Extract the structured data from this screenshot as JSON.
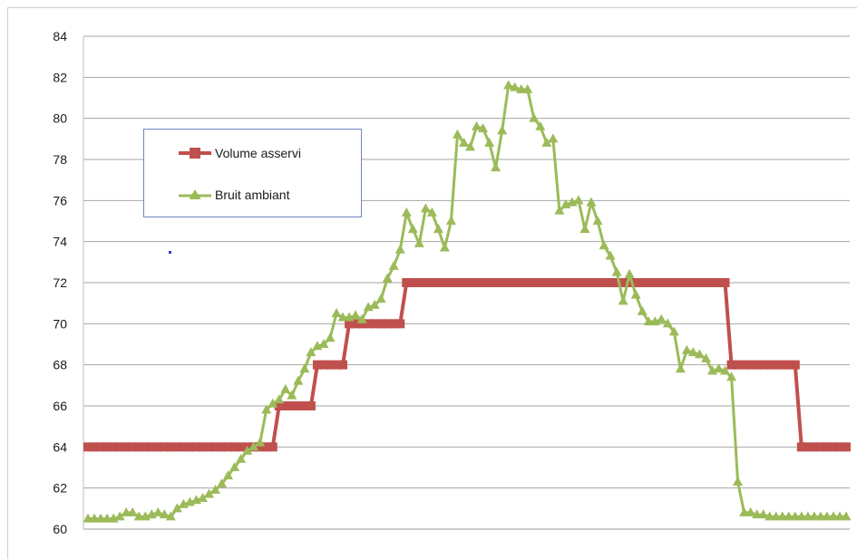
{
  "chart_data": {
    "type": "line",
    "title": "",
    "xlabel": "",
    "ylabel": "",
    "ylim": [
      60,
      84
    ],
    "yticks": [
      60,
      62,
      64,
      66,
      68,
      70,
      72,
      74,
      76,
      78,
      80,
      82,
      84
    ],
    "grid": "horizontal",
    "legend_position": "upper-left",
    "x": [
      1,
      2,
      3,
      4,
      5,
      6,
      7,
      8,
      9,
      10,
      11,
      12,
      13,
      14,
      15,
      16,
      17,
      18,
      19,
      20,
      21,
      22,
      23,
      24,
      25,
      26,
      27,
      28,
      29,
      30,
      31,
      32,
      33,
      34,
      35,
      36,
      37,
      38,
      39,
      40,
      41,
      42,
      43,
      44,
      45,
      46,
      47,
      48,
      49,
      50,
      51,
      52,
      53,
      54,
      55,
      56,
      57,
      58,
      59,
      60,
      61,
      62,
      63,
      64,
      65,
      66,
      67,
      68,
      69,
      70,
      71,
      72,
      73,
      74,
      75,
      76,
      77,
      78,
      79,
      80,
      81,
      82,
      83,
      84,
      85,
      86,
      87,
      88,
      89,
      90,
      91,
      92,
      93,
      94,
      95,
      96,
      97,
      98,
      99,
      100,
      101,
      102,
      103,
      104,
      105,
      106,
      107,
      108,
      109,
      110,
      111,
      112,
      113,
      114,
      115,
      116,
      117,
      118,
      119,
      120
    ],
    "series": [
      {
        "name": "Volume asservi",
        "color": "#c0504d",
        "marker": "square",
        "values": [
          64,
          64,
          64,
          64,
          64,
          64,
          64,
          64,
          64,
          64,
          64,
          64,
          64,
          64,
          64,
          64,
          64,
          64,
          64,
          64,
          64,
          64,
          64,
          64,
          64,
          64,
          64,
          64,
          64,
          64,
          66,
          66,
          66,
          66,
          66,
          66,
          68,
          68,
          68,
          68,
          68,
          70,
          70,
          70,
          70,
          70,
          70,
          70,
          70,
          70,
          72,
          72,
          72,
          72,
          72,
          72,
          72,
          72,
          72,
          72,
          72,
          72,
          72,
          72,
          72,
          72,
          72,
          72,
          72,
          72,
          72,
          72,
          72,
          72,
          72,
          72,
          72,
          72,
          72,
          72,
          72,
          72,
          72,
          72,
          72,
          72,
          72,
          72,
          72,
          72,
          72,
          72,
          72,
          72,
          72,
          72,
          72,
          72,
          72,
          72,
          72,
          68,
          68,
          68,
          68,
          68,
          68,
          68,
          68,
          68,
          68,
          68,
          64,
          64,
          64,
          64,
          64,
          64,
          64,
          64
        ],
        "values_count_note": ""
      },
      {
        "name": "Bruit ambiant",
        "color": "#9bbb59",
        "marker": "triangle",
        "values": [
          60.5,
          60.5,
          60.5,
          60.5,
          60.5,
          60.6,
          60.8,
          60.8,
          60.6,
          60.6,
          60.7,
          60.8,
          60.7,
          60.6,
          61.0,
          61.2,
          61.3,
          61.4,
          61.5,
          61.7,
          61.9,
          62.2,
          62.6,
          63.0,
          63.4,
          63.8,
          64.0,
          64.2,
          65.8,
          66.1,
          66.3,
          66.8,
          66.5,
          67.2,
          67.8,
          68.6,
          68.9,
          69.0,
          69.3,
          70.5,
          70.3,
          70.3,
          70.4,
          70.2,
          70.8,
          70.9,
          71.2,
          72.2,
          72.8,
          73.6,
          75.4,
          74.6,
          73.9,
          75.6,
          75.4,
          74.6,
          73.7,
          75.0,
          79.2,
          78.8,
          78.6,
          79.6,
          79.5,
          78.8,
          77.6,
          79.4,
          81.6,
          81.5,
          81.4,
          81.4,
          80.0,
          79.6,
          78.8,
          79.0,
          75.5,
          75.8,
          75.9,
          76.0,
          74.6,
          75.9,
          75.0,
          73.8,
          73.3,
          72.5,
          71.1,
          72.4,
          71.4,
          70.6,
          70.1,
          70.1,
          70.2,
          70.0,
          69.6,
          67.8,
          68.7,
          68.6,
          68.5,
          68.3,
          67.7,
          67.8,
          67.7,
          67.4,
          62.3,
          60.8,
          60.8,
          60.7,
          60.7,
          60.6,
          60.6,
          60.6,
          60.6,
          60.6,
          60.6,
          60.6,
          60.6,
          60.6,
          60.6,
          60.6,
          60.6,
          60.6
        ],
        "values_count_note": ""
      }
    ]
  }
}
